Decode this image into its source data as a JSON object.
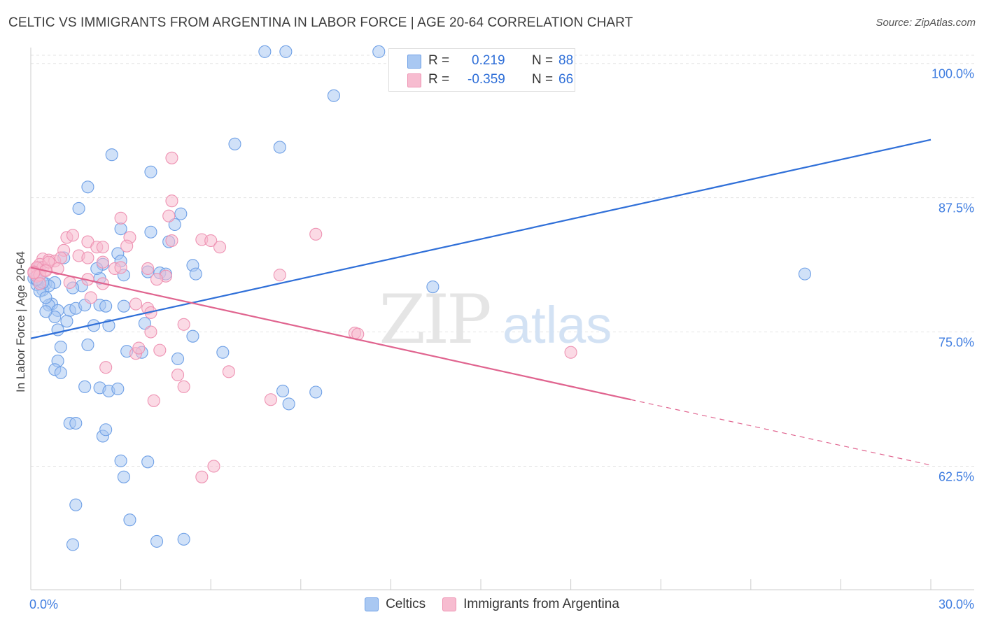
{
  "header": {
    "title": "CELTIC VS IMMIGRANTS FROM ARGENTINA IN LABOR FORCE | AGE 20-64 CORRELATION CHART",
    "source": "Source: ZipAtlas.com"
  },
  "watermark": {
    "zip": "ZIP",
    "atlas": "atlas"
  },
  "colors": {
    "celtics_fill": "#a9c8f2",
    "celtics_stroke": "#6fa0e6",
    "celtics_line": "#2f6fd8",
    "argentina_fill": "#f7bcd0",
    "argentina_stroke": "#ee93b3",
    "argentina_line": "#e0648f",
    "tick_label": "#3f7de0",
    "grid": "#e3e3e3"
  },
  "stats": {
    "celtics": {
      "r_label": "R =",
      "r_value": "0.219",
      "n_label": "N =",
      "n_value": "88"
    },
    "argentina": {
      "r_label": "R =",
      "r_value": "-0.359",
      "n_label": "N =",
      "n_value": "66"
    }
  },
  "chart_data": {
    "type": "scatter",
    "title": "CELTIC VS IMMIGRANTS FROM ARGENTINA IN LABOR FORCE | AGE 20-64 CORRELATION CHART",
    "xlabel": "",
    "ylabel": "In Labor Force | Age 20-64",
    "xlim": [
      0,
      30
    ],
    "ylim": [
      51,
      102
    ],
    "x_tick_labels": [
      {
        "value": 0,
        "label": "0.0%"
      },
      {
        "value": 30,
        "label": "30.0%"
      }
    ],
    "y_ticks": [
      {
        "value": 100,
        "label": "100.0%"
      },
      {
        "value": 87.5,
        "label": "87.5%"
      },
      {
        "value": 75,
        "label": "75.0%"
      },
      {
        "value": 62.5,
        "label": "62.5%"
      }
    ],
    "legend_position": "bottom-center",
    "series": [
      {
        "name": "Celtics",
        "points": [
          [
            7.8,
            101.1
          ],
          [
            8.5,
            101.1
          ],
          [
            11.6,
            101.1
          ],
          [
            10.1,
            97.0
          ],
          [
            6.8,
            92.5
          ],
          [
            8.3,
            92.2
          ],
          [
            2.7,
            91.5
          ],
          [
            4.0,
            89.9
          ],
          [
            1.9,
            88.5
          ],
          [
            1.6,
            86.5
          ],
          [
            5.0,
            86.0
          ],
          [
            4.8,
            85.0
          ],
          [
            3.0,
            84.6
          ],
          [
            4.0,
            84.3
          ],
          [
            4.6,
            83.4
          ],
          [
            0.3,
            81.0
          ],
          [
            1.1,
            81.9
          ],
          [
            2.9,
            82.3
          ],
          [
            2.4,
            81.3
          ],
          [
            3.0,
            81.6
          ],
          [
            5.4,
            81.2
          ],
          [
            0.5,
            79.5
          ],
          [
            0.8,
            79.6
          ],
          [
            0.4,
            78.9
          ],
          [
            1.7,
            79.3
          ],
          [
            1.4,
            79.1
          ],
          [
            2.3,
            80.0
          ],
          [
            3.1,
            80.3
          ],
          [
            3.9,
            80.6
          ],
          [
            4.3,
            80.5
          ],
          [
            4.5,
            80.4
          ],
          [
            5.5,
            80.4
          ],
          [
            0.6,
            79.3
          ],
          [
            0.7,
            77.6
          ],
          [
            0.6,
            77.5
          ],
          [
            0.9,
            77.0
          ],
          [
            0.8,
            76.4
          ],
          [
            1.3,
            77.0
          ],
          [
            1.5,
            77.2
          ],
          [
            1.8,
            77.5
          ],
          [
            2.3,
            77.5
          ],
          [
            2.5,
            77.4
          ],
          [
            3.1,
            77.4
          ],
          [
            0.1,
            80.0
          ],
          [
            0.2,
            79.8
          ],
          [
            0.2,
            79.4
          ],
          [
            0.3,
            78.8
          ],
          [
            0.4,
            79.6
          ],
          [
            0.5,
            78.2
          ],
          [
            0.5,
            76.9
          ],
          [
            0.9,
            75.2
          ],
          [
            1.2,
            76.0
          ],
          [
            2.1,
            75.6
          ],
          [
            2.6,
            75.6
          ],
          [
            3.8,
            75.8
          ],
          [
            5.4,
            74.6
          ],
          [
            1.0,
            73.6
          ],
          [
            1.9,
            73.8
          ],
          [
            3.2,
            73.2
          ],
          [
            3.7,
            73.1
          ],
          [
            0.9,
            72.3
          ],
          [
            0.8,
            71.5
          ],
          [
            1.0,
            71.2
          ],
          [
            4.9,
            72.5
          ],
          [
            6.4,
            73.1
          ],
          [
            1.8,
            69.9
          ],
          [
            2.3,
            69.8
          ],
          [
            2.6,
            69.5
          ],
          [
            2.9,
            69.7
          ],
          [
            8.4,
            69.5
          ],
          [
            9.5,
            69.4
          ],
          [
            8.6,
            68.3
          ],
          [
            1.3,
            66.5
          ],
          [
            1.5,
            66.5
          ],
          [
            2.4,
            65.3
          ],
          [
            2.5,
            65.9
          ],
          [
            3.0,
            63.0
          ],
          [
            3.9,
            62.9
          ],
          [
            3.1,
            61.5
          ],
          [
            1.5,
            58.9
          ],
          [
            3.3,
            57.5
          ],
          [
            5.1,
            55.7
          ],
          [
            4.2,
            55.5
          ],
          [
            1.4,
            55.2
          ],
          [
            13.4,
            79.2
          ],
          [
            25.8,
            80.4
          ],
          [
            2.2,
            80.9
          ],
          [
            0.2,
            79.9
          ]
        ]
      },
      {
        "name": "Immigrants from Argentina",
        "points": [
          [
            4.7,
            91.2
          ],
          [
            4.7,
            87.2
          ],
          [
            4.6,
            85.8
          ],
          [
            3.0,
            85.6
          ],
          [
            9.5,
            84.1
          ],
          [
            3.3,
            83.8
          ],
          [
            4.7,
            83.5
          ],
          [
            5.7,
            83.6
          ],
          [
            6.0,
            83.5
          ],
          [
            6.3,
            82.9
          ],
          [
            1.2,
            83.8
          ],
          [
            1.4,
            84.0
          ],
          [
            1.9,
            83.4
          ],
          [
            2.2,
            82.9
          ],
          [
            2.4,
            82.9
          ],
          [
            3.2,
            83.0
          ],
          [
            1.1,
            82.6
          ],
          [
            1.6,
            82.1
          ],
          [
            1.9,
            81.9
          ],
          [
            0.4,
            81.8
          ],
          [
            0.6,
            81.7
          ],
          [
            0.8,
            81.6
          ],
          [
            1.0,
            81.9
          ],
          [
            0.2,
            80.9
          ],
          [
            0.3,
            81.3
          ],
          [
            0.4,
            81.0
          ],
          [
            0.5,
            80.8
          ],
          [
            0.6,
            81.5
          ],
          [
            0.2,
            81.0
          ],
          [
            0.1,
            80.6
          ],
          [
            2.4,
            81.5
          ],
          [
            2.8,
            80.9
          ],
          [
            3.0,
            81.0
          ],
          [
            3.9,
            80.9
          ],
          [
            4.5,
            80.2
          ],
          [
            4.2,
            79.9
          ],
          [
            8.3,
            80.3
          ],
          [
            1.9,
            79.9
          ],
          [
            1.3,
            79.6
          ],
          [
            2.4,
            79.5
          ],
          [
            0.2,
            80.2
          ],
          [
            0.3,
            80.3
          ],
          [
            0.5,
            80.7
          ],
          [
            2.0,
            78.2
          ],
          [
            3.5,
            77.6
          ],
          [
            3.9,
            77.2
          ],
          [
            4.0,
            76.8
          ],
          [
            5.1,
            75.7
          ],
          [
            4.0,
            75.0
          ],
          [
            10.8,
            74.9
          ],
          [
            10.9,
            74.8
          ],
          [
            18.0,
            73.1
          ],
          [
            3.5,
            73.0
          ],
          [
            3.6,
            73.5
          ],
          [
            4.3,
            73.3
          ],
          [
            2.5,
            71.7
          ],
          [
            4.9,
            71.0
          ],
          [
            6.6,
            71.3
          ],
          [
            5.1,
            69.9
          ],
          [
            4.1,
            68.6
          ],
          [
            8.0,
            68.7
          ],
          [
            6.1,
            62.5
          ],
          [
            5.7,
            61.5
          ],
          [
            0.3,
            79.5
          ],
          [
            0.9,
            80.9
          ],
          [
            0.1,
            80.5
          ]
        ]
      }
    ],
    "trend_lines": [
      {
        "series": "Celtics",
        "x0": 0,
        "y0": 74.4,
        "x1": 30,
        "y1": 92.9,
        "style": "solid"
      },
      {
        "series": "Immigrants from Argentina",
        "x0": 0,
        "y0": 81.0,
        "x1": 20,
        "y1": 68.7,
        "style": "solid"
      },
      {
        "series": "Immigrants from Argentina",
        "x0": 20,
        "y0": 68.7,
        "x1": 30,
        "y1": 62.6,
        "style": "dashed"
      }
    ]
  }
}
